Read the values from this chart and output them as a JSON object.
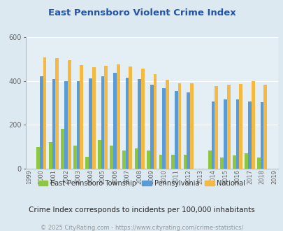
{
  "title": "East Pennsboro Violent Crime Index",
  "years_all": [
    1999,
    2000,
    2001,
    2002,
    2003,
    2004,
    2005,
    2006,
    2007,
    2008,
    2009,
    2010,
    2011,
    2012,
    2013,
    2014,
    2015,
    2016,
    2017,
    2018,
    2019
  ],
  "years_data": [
    2000,
    2001,
    2002,
    2003,
    2004,
    2005,
    2006,
    2007,
    2008,
    2009,
    2010,
    2011,
    2012,
    2014,
    2015,
    2016,
    2017,
    2018
  ],
  "east_penn": [
    100,
    120,
    180,
    105,
    55,
    130,
    105,
    82,
    93,
    83,
    65,
    65,
    62,
    83,
    52,
    60,
    70,
    50
  ],
  "pennsylvania": [
    420,
    407,
    400,
    400,
    410,
    422,
    438,
    415,
    408,
    383,
    368,
    355,
    348,
    305,
    315,
    315,
    305,
    302
  ],
  "national": [
    507,
    504,
    495,
    472,
    462,
    468,
    474,
    466,
    455,
    430,
    405,
    390,
    390,
    376,
    383,
    386,
    399,
    383
  ],
  "east_penn_color": "#8dc63f",
  "pennsylvania_color": "#5b9bd5",
  "national_color": "#f5b942",
  "bg_color": "#dce9f0",
  "plot_bg_color": "#e4eff5",
  "title_color": "#2255aa",
  "ylabel_max": 600,
  "yticks": [
    0,
    200,
    400,
    600
  ],
  "subtitle": "Crime Index corresponds to incidents per 100,000 inhabitants",
  "footer": "© 2025 CityRating.com - https://www.cityrating.com/crime-statistics/",
  "legend_labels": [
    "East Pennsboro Township",
    "Pennsylvania",
    "National"
  ],
  "subtitle_color": "#222222",
  "footer_color": "#999999",
  "grid_color": "#ffffff"
}
